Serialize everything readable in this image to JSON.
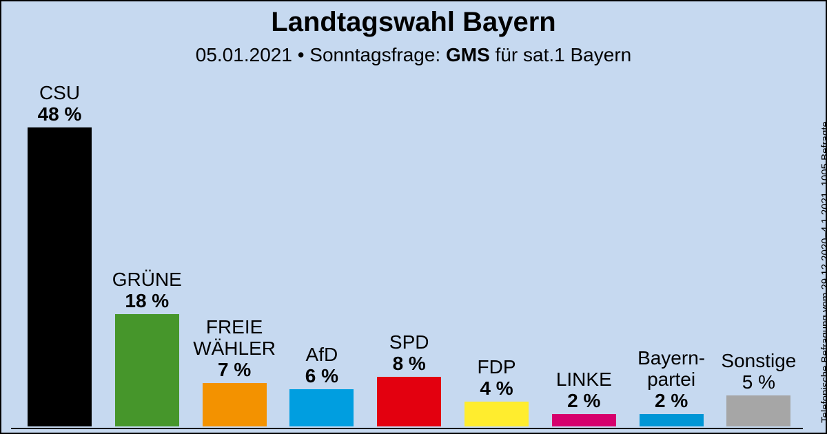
{
  "header": {
    "title": "Landtagswahl Bayern",
    "subtitle_date": "05.01.2021",
    "subtitle_sep": " • ",
    "subtitle_label": "Sonntagsfrage: ",
    "subtitle_institute": "GMS",
    "subtitle_client": " für sat.1 Bayern"
  },
  "side_note": "Telefonische Befragung vom 29.12.2020–4.1.2021, 1005 Befragte",
  "chart_data": {
    "type": "bar",
    "categories": [
      "CSU",
      "GRÜNE",
      "FREIE WÄHLER",
      "AfD",
      "SPD",
      "FDP",
      "LINKE",
      "Bayern-partei",
      "Sonstige"
    ],
    "values": [
      48,
      18,
      7,
      6,
      8,
      4,
      2,
      2,
      5
    ],
    "display_names": [
      "CSU",
      "GRÜNE",
      "FREIE\nWÄHLER",
      "AfD",
      "SPD",
      "FDP",
      "LINKE",
      "Bayern-\npartei",
      "Sonstige"
    ],
    "value_labels": [
      "48 %",
      "18 %",
      "7 %",
      "6 %",
      "8 %",
      "4 %",
      "2 %",
      "2 %",
      "5 %"
    ],
    "value_label_bold": [
      true,
      true,
      true,
      true,
      true,
      true,
      true,
      true,
      false
    ],
    "colors": [
      "#000000",
      "#46962b",
      "#f39200",
      "#009ee0",
      "#e3000f",
      "#ffed2e",
      "#d6006d",
      "#0096d6",
      "#a6a6a6"
    ],
    "ylim": [
      0,
      48
    ],
    "grid": false,
    "legend": "none"
  }
}
